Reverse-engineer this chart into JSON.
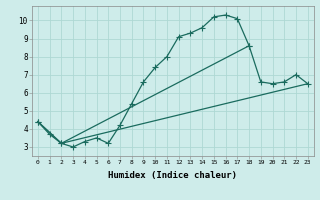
{
  "xlabel": "Humidex (Indice chaleur)",
  "bg_color": "#ceecea",
  "grid_color": "#aed8d4",
  "line_color": "#1a6b5e",
  "xlim": [
    -0.5,
    23.5
  ],
  "ylim": [
    2.5,
    10.8
  ],
  "yticks": [
    3,
    4,
    5,
    6,
    7,
    8,
    9,
    10
  ],
  "xticks": [
    0,
    1,
    2,
    3,
    4,
    5,
    6,
    7,
    8,
    9,
    10,
    11,
    12,
    13,
    14,
    15,
    16,
    17,
    18,
    19,
    20,
    21,
    22,
    23
  ],
  "series1_x": [
    0,
    1,
    2,
    3,
    4,
    5,
    6,
    7,
    8,
    9,
    10,
    11,
    12,
    13,
    14,
    15,
    16,
    17,
    18
  ],
  "series1_y": [
    4.4,
    3.7,
    3.2,
    3.0,
    3.3,
    3.5,
    3.2,
    4.2,
    5.4,
    6.6,
    7.4,
    8.0,
    9.1,
    9.3,
    9.6,
    10.2,
    10.3,
    10.1,
    8.6
  ],
  "series2_x": [
    0,
    2,
    18,
    19,
    20,
    21,
    22,
    23
  ],
  "series2_y": [
    4.4,
    3.2,
    8.6,
    6.6,
    6.5,
    6.6,
    7.0,
    6.5
  ],
  "series3_x": [
    0,
    2,
    23
  ],
  "series3_y": [
    4.4,
    3.2,
    6.5
  ],
  "marker_size": 4,
  "line_width": 0.9
}
